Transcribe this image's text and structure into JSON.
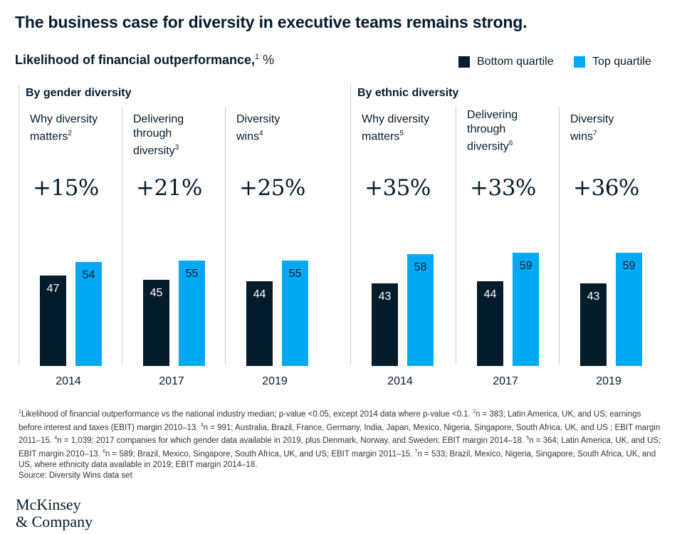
{
  "title": "The business case for diversity in executive teams remains strong.",
  "subtitle": {
    "text": "Likelihood of financial outperformance,",
    "sup": "1",
    "unit": " %"
  },
  "legend": [
    {
      "label": "Bottom quartile",
      "color": "#051c2c"
    },
    {
      "label": "Top quartile",
      "color": "#00a9f4"
    }
  ],
  "chart_data": {
    "type": "bar",
    "title": "Likelihood of financial outperformance, %",
    "ylim": [
      0,
      100
    ],
    "groups": [
      {
        "title": "By gender diversity",
        "panels": [
          {
            "name": "Why diversity matters",
            "sup": "2",
            "category": "2014",
            "delta": "+15%",
            "values": {
              "Bottom quartile": 47,
              "Top quartile": 54
            }
          },
          {
            "name": "Delivering through diversity",
            "sup": "3",
            "category": "2017",
            "delta": "+21%",
            "values": {
              "Bottom quartile": 45,
              "Top quartile": 55
            }
          },
          {
            "name": "Diversity wins",
            "sup": "4",
            "category": "2019",
            "delta": "+25%",
            "values": {
              "Bottom quartile": 44,
              "Top quartile": 55
            }
          }
        ]
      },
      {
        "title": "By ethnic diversity",
        "panels": [
          {
            "name": "Why diversity matters",
            "sup": "5",
            "category": "2014",
            "delta": "+35%",
            "values": {
              "Bottom quartile": 43,
              "Top quartile": 58
            }
          },
          {
            "name": "Delivering through diversity",
            "sup": "6",
            "category": "2017",
            "delta": "+33%",
            "values": {
              "Bottom quartile": 44,
              "Top quartile": 59
            }
          },
          {
            "name": "Diversity wins",
            "sup": "7",
            "category": "2019",
            "delta": "+36%",
            "values": {
              "Bottom quartile": 43,
              "Top quartile": 59
            }
          }
        ]
      }
    ]
  },
  "footnotes": [
    {
      "sup": "1",
      "text": "Likelihood of financial outperformance vs the national industry median; p-value <0.05, except 2014 data where p-value <0.1. "
    },
    {
      "sup": "2",
      "text": "n = 383; Latin America, UK, and US; earnings before interest and taxes (EBIT) margin 2010–13. "
    },
    {
      "sup": "3",
      "text": "n = 991; Australia, Brazil, France, Germany, India, Japan, Mexico, Nigeria, Singapore, South Africa, UK, and US ; EBIT margin 2011–15. "
    },
    {
      "sup": "4",
      "text": "n = 1,039; 2017 companies for which gender data available in 2019, plus Denmark, Norway, and Sweden;  EBIT margin 2014–18. "
    },
    {
      "sup": "5",
      "text": "n = 364; Latin America, UK, and US; EBIT margin 2010–13. "
    },
    {
      "sup": "6",
      "text": "n = 589; Brazil, Mexico, Singapore, South Africa, UK, and US; EBIT margin 2011–15. "
    },
    {
      "sup": "7",
      "text": "n = 533; Brazil, Mexico, Nigeria, Singapore, South Africa, UK, and US, where ethnicity data available in 2019; EBIT margin 2014–18."
    }
  ],
  "source": "Source: Diversity Wins data set",
  "logo": {
    "line1": "McKinsey",
    "line2": "& Company"
  }
}
